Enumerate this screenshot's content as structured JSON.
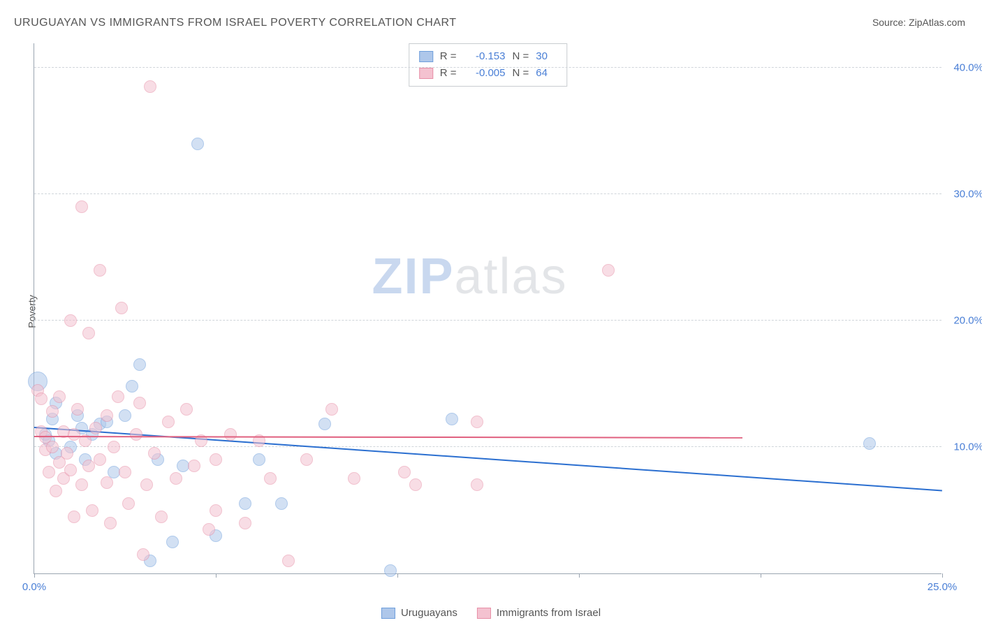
{
  "title": "URUGUAYAN VS IMMIGRANTS FROM ISRAEL POVERTY CORRELATION CHART",
  "source": "Source: ZipAtlas.com",
  "ylabel": "Poverty",
  "watermark": {
    "zip": "ZIP",
    "atlas": "atlas"
  },
  "chart": {
    "type": "scatter",
    "xlim": [
      0,
      25
    ],
    "ylim": [
      0,
      42
    ],
    "xtick_label_left": "0.0%",
    "xtick_label_right": "25.0%",
    "xtick_positions": [
      0,
      5,
      10,
      15,
      20,
      25
    ],
    "yticks": [
      {
        "v": 10,
        "label": "10.0%"
      },
      {
        "v": 20,
        "label": "20.0%"
      },
      {
        "v": 30,
        "label": "30.0%"
      },
      {
        "v": 40,
        "label": "40.0%"
      }
    ],
    "background_color": "#ffffff",
    "grid_color": "#d0d5da",
    "point_radius": 9,
    "point_opacity": 0.55,
    "series": [
      {
        "name": "Uruguayans",
        "fill": "#aec7ea",
        "stroke": "#6f9fdc",
        "trend_color": "#2b6fd0",
        "R": "-0.153",
        "N": "30",
        "trend": {
          "x1": 0,
          "y1": 11.5,
          "x2": 25,
          "y2": 6.5
        },
        "points": [
          [
            0.1,
            15.2,
            14
          ],
          [
            0.3,
            11.0,
            9
          ],
          [
            0.4,
            10.5,
            9
          ],
          [
            0.5,
            12.2,
            9
          ],
          [
            0.6,
            9.5,
            9
          ],
          [
            0.6,
            13.5,
            9
          ],
          [
            1.0,
            10.0,
            9
          ],
          [
            1.2,
            12.5,
            9
          ],
          [
            1.3,
            11.5,
            9
          ],
          [
            1.4,
            9.0,
            9
          ],
          [
            1.6,
            11.0,
            9
          ],
          [
            1.8,
            11.8,
            9
          ],
          [
            2.0,
            12.0,
            9
          ],
          [
            2.2,
            8.0,
            9
          ],
          [
            2.5,
            12.5,
            9
          ],
          [
            2.7,
            14.8,
            9
          ],
          [
            2.9,
            16.5,
            9
          ],
          [
            3.2,
            1.0,
            9
          ],
          [
            3.4,
            9.0,
            9
          ],
          [
            3.8,
            2.5,
            9
          ],
          [
            4.1,
            8.5,
            9
          ],
          [
            4.5,
            34.0,
            9
          ],
          [
            5.0,
            3.0,
            9
          ],
          [
            5.8,
            5.5,
            9
          ],
          [
            6.2,
            9.0,
            9
          ],
          [
            6.8,
            5.5,
            9
          ],
          [
            8.0,
            11.8,
            9
          ],
          [
            9.8,
            0.2,
            9
          ],
          [
            11.5,
            12.2,
            9
          ],
          [
            23.0,
            10.3,
            9
          ]
        ]
      },
      {
        "name": "Immigrants from Israel",
        "fill": "#f4c2d0",
        "stroke": "#e78fa7",
        "trend_color": "#e0607f",
        "R": "-0.005",
        "N": "64",
        "trend": {
          "x1": 0,
          "y1": 10.8,
          "x2": 19.5,
          "y2": 10.7
        },
        "points": [
          [
            0.1,
            14.5,
            9
          ],
          [
            0.2,
            11.2,
            9
          ],
          [
            0.2,
            13.8,
            9
          ],
          [
            0.3,
            9.8,
            9
          ],
          [
            0.3,
            10.8,
            9
          ],
          [
            0.4,
            8.0,
            9
          ],
          [
            0.5,
            12.8,
            9
          ],
          [
            0.5,
            10.0,
            9
          ],
          [
            0.6,
            6.5,
            9
          ],
          [
            0.7,
            8.8,
            9
          ],
          [
            0.7,
            14.0,
            9
          ],
          [
            0.8,
            11.2,
            9
          ],
          [
            0.8,
            7.5,
            9
          ],
          [
            0.9,
            9.5,
            9
          ],
          [
            1.0,
            20.0,
            9
          ],
          [
            1.0,
            8.2,
            9
          ],
          [
            1.1,
            11.0,
            9
          ],
          [
            1.1,
            4.5,
            9
          ],
          [
            1.2,
            13.0,
            9
          ],
          [
            1.3,
            7.0,
            9
          ],
          [
            1.3,
            29.0,
            9
          ],
          [
            1.4,
            10.5,
            9
          ],
          [
            1.5,
            19.0,
            9
          ],
          [
            1.5,
            8.5,
            9
          ],
          [
            1.6,
            5.0,
            9
          ],
          [
            1.7,
            11.5,
            9
          ],
          [
            1.8,
            24.0,
            9
          ],
          [
            1.8,
            9.0,
            9
          ],
          [
            2.0,
            12.5,
            9
          ],
          [
            2.0,
            7.2,
            9
          ],
          [
            2.1,
            4.0,
            9
          ],
          [
            2.2,
            10.0,
            9
          ],
          [
            2.3,
            14.0,
            9
          ],
          [
            2.4,
            21.0,
            9
          ],
          [
            2.5,
            8.0,
            9
          ],
          [
            2.6,
            5.5,
            9
          ],
          [
            2.8,
            11.0,
            9
          ],
          [
            2.9,
            13.5,
            9
          ],
          [
            3.0,
            1.5,
            9
          ],
          [
            3.1,
            7.0,
            9
          ],
          [
            3.2,
            38.5,
            9
          ],
          [
            3.3,
            9.5,
            9
          ],
          [
            3.5,
            4.5,
            9
          ],
          [
            3.7,
            12.0,
            9
          ],
          [
            3.9,
            7.5,
            9
          ],
          [
            4.2,
            13.0,
            9
          ],
          [
            4.4,
            8.5,
            9
          ],
          [
            4.6,
            10.5,
            9
          ],
          [
            4.8,
            3.5,
            9
          ],
          [
            5.0,
            5.0,
            9
          ],
          [
            5.0,
            9.0,
            9
          ],
          [
            5.4,
            11.0,
            9
          ],
          [
            5.8,
            4.0,
            9
          ],
          [
            6.2,
            10.5,
            9
          ],
          [
            6.5,
            7.5,
            9
          ],
          [
            7.0,
            1.0,
            9
          ],
          [
            7.5,
            9.0,
            9
          ],
          [
            8.2,
            13.0,
            9
          ],
          [
            8.8,
            7.5,
            9
          ],
          [
            10.2,
            8.0,
            9
          ],
          [
            10.5,
            7.0,
            9
          ],
          [
            12.2,
            12.0,
            9
          ],
          [
            12.2,
            7.0,
            9
          ],
          [
            15.8,
            24.0,
            9
          ]
        ]
      }
    ]
  },
  "stats_labels": {
    "r_prefix": "R =",
    "n_prefix": "N ="
  }
}
